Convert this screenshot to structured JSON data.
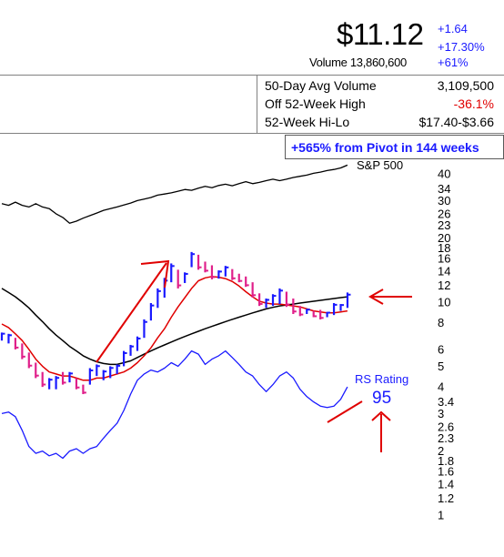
{
  "quote": {
    "price": "$11.12",
    "change": "+1.64",
    "change_pct": "+17.30%",
    "volume_label": "Volume 13,860,600",
    "volume_pct": "+61%"
  },
  "stats": [
    {
      "label": "50-Day Avg Volume",
      "value": "3,109,500"
    },
    {
      "label": "Off 52-Week High",
      "value": "-36.1%"
    },
    {
      "label": "52-Week Hi-Lo",
      "value": "$17.40-$3.66"
    }
  ],
  "pivot_label": "+565% from Pivot in 144 weeks",
  "colors": {
    "up": "#1a1aff",
    "down": "#e0208a",
    "ma_short": "#e00000",
    "ma_long": "#000000",
    "negative": "#e00000",
    "accent": "#1a1aff"
  },
  "chart_data": {
    "type": "line",
    "axis": {
      "scale": "log",
      "ticks": [
        "40",
        "34",
        "30",
        "26",
        "23",
        "20",
        "18",
        "16",
        "14",
        "12",
        "10",
        "8",
        "6",
        "5",
        "4",
        "3.4",
        "3",
        "2.6",
        "2.3",
        "2",
        "1.8",
        "1.6",
        "1.4",
        "1.2",
        "1"
      ],
      "tick_values": [
        40,
        34,
        30,
        26,
        23,
        20,
        18,
        16,
        14,
        12,
        10,
        8,
        6,
        5,
        4,
        3.4,
        3,
        2.6,
        2.3,
        2,
        1.8,
        1.6,
        1.4,
        1.2,
        1
      ]
    },
    "series_labels": {
      "sp500": "S&P 500",
      "rs": "RS Rating"
    },
    "rs_rating": "95",
    "price_bars": [
      [
        6.6,
        7.2,
        1
      ],
      [
        6.4,
        7.1,
        1
      ],
      [
        6.0,
        6.8,
        -1
      ],
      [
        5.4,
        6.4,
        -1
      ],
      [
        4.9,
        5.8,
        -1
      ],
      [
        4.4,
        5.2,
        -1
      ],
      [
        4.0,
        4.7,
        -1
      ],
      [
        3.9,
        4.4,
        1
      ],
      [
        3.9,
        4.5,
        1
      ],
      [
        4.1,
        4.7,
        -1
      ],
      [
        4.2,
        4.7,
        1
      ],
      [
        3.9,
        4.4,
        -1
      ],
      [
        3.7,
        4.1,
        -1
      ],
      [
        4.1,
        4.9,
        1
      ],
      [
        4.5,
        5.1,
        1
      ],
      [
        4.3,
        4.8,
        1
      ],
      [
        4.4,
        5.0,
        1
      ],
      [
        4.6,
        5.1,
        1
      ],
      [
        5.0,
        5.9,
        1
      ],
      [
        5.6,
        6.3,
        1
      ],
      [
        5.9,
        6.9,
        1
      ],
      [
        6.8,
        8.3,
        1
      ],
      [
        8.2,
        9.9,
        1
      ],
      [
        9.4,
        11.6,
        1
      ],
      [
        10.5,
        13.0,
        1
      ],
      [
        12.4,
        15.2,
        1
      ],
      [
        11.6,
        14.2,
        -1
      ],
      [
        12.3,
        13.8,
        1
      ],
      [
        14.6,
        17.2,
        1
      ],
      [
        14.2,
        16.7,
        -1
      ],
      [
        13.8,
        15.5,
        -1
      ],
      [
        12.8,
        14.9,
        -1
      ],
      [
        12.9,
        14.1,
        1
      ],
      [
        13.2,
        14.8,
        1
      ],
      [
        12.7,
        14.3,
        -1
      ],
      [
        12.4,
        13.6,
        -1
      ],
      [
        11.8,
        13.2,
        -1
      ],
      [
        10.5,
        12.4,
        -1
      ],
      [
        9.6,
        11.0,
        -1
      ],
      [
        9.4,
        10.4,
        1
      ],
      [
        9.6,
        10.9,
        1
      ],
      [
        9.8,
        11.6,
        1
      ],
      [
        9.5,
        11.2,
        -1
      ],
      [
        8.8,
        10.4,
        -1
      ],
      [
        8.6,
        9.6,
        -1
      ],
      [
        8.8,
        9.3,
        1
      ],
      [
        8.5,
        9.1,
        -1
      ],
      [
        8.3,
        9.2,
        -1
      ],
      [
        8.5,
        9.0,
        1
      ],
      [
        8.7,
        9.9,
        1
      ],
      [
        9.1,
        9.8,
        1
      ],
      [
        9.4,
        11.1,
        1
      ]
    ],
    "ma_short": [
      7.9,
      7.6,
      7.1,
      6.6,
      6.0,
      5.4,
      5.0,
      4.7,
      4.6,
      4.5,
      4.5,
      4.4,
      4.3,
      4.3,
      4.4,
      4.4,
      4.5,
      4.6,
      4.7,
      4.9,
      5.2,
      5.6,
      6.1,
      6.8,
      7.5,
      8.5,
      9.5,
      10.5,
      11.6,
      12.6,
      13.0,
      13.2,
      13.1,
      12.9,
      12.5,
      11.9,
      11.2,
      10.6,
      10.1,
      9.9,
      9.8,
      9.8,
      9.7,
      9.6,
      9.5,
      9.3,
      9.1,
      9.0,
      8.9,
      8.9,
      9.0,
      9.1
    ],
    "ma_long": [
      11.6,
      11.1,
      10.6,
      10.0,
      9.4,
      8.7,
      8.1,
      7.5,
      7.0,
      6.6,
      6.2,
      5.9,
      5.6,
      5.4,
      5.25,
      5.15,
      5.1,
      5.1,
      5.2,
      5.3,
      5.5,
      5.7,
      5.9,
      6.1,
      6.3,
      6.5,
      6.7,
      6.9,
      7.1,
      7.3,
      7.5,
      7.7,
      7.9,
      8.1,
      8.3,
      8.5,
      8.7,
      8.9,
      9.1,
      9.3,
      9.45,
      9.6,
      9.7,
      9.8,
      9.9,
      10.0,
      10.1,
      10.2,
      10.3,
      10.4,
      10.5,
      10.6
    ],
    "rs_line": [
      3.0,
      3.05,
      2.9,
      2.5,
      2.1,
      1.95,
      2.0,
      1.9,
      1.95,
      1.85,
      2.0,
      2.05,
      1.95,
      2.05,
      2.1,
      2.3,
      2.5,
      2.7,
      3.1,
      3.7,
      4.3,
      4.6,
      4.8,
      4.7,
      4.9,
      5.2,
      5.0,
      5.4,
      5.9,
      5.7,
      5.1,
      5.4,
      5.6,
      5.9,
      5.5,
      5.1,
      4.7,
      4.5,
      4.1,
      3.8,
      4.1,
      4.5,
      4.7,
      4.4,
      3.9,
      3.6,
      3.4,
      3.25,
      3.2,
      3.25,
      3.5,
      4.0
    ],
    "sp500_line": [
      29,
      28.5,
      29.5,
      28.5,
      28,
      29,
      28,
      27.5,
      26,
      25,
      23.5,
      24,
      24.8,
      25.5,
      26.2,
      27,
      27.5,
      28,
      28.6,
      29.2,
      30,
      30.5,
      31,
      31.8,
      32.2,
      32.6,
      33.2,
      33.8,
      33.5,
      34.3,
      35,
      34.5,
      35.3,
      35.8,
      35.2,
      36,
      36.8,
      36,
      36.5,
      37.2,
      37.8,
      37.2,
      37.8,
      38.5,
      39,
      39.5,
      40.3,
      40.8,
      41.5,
      42,
      42.7,
      44
    ]
  }
}
